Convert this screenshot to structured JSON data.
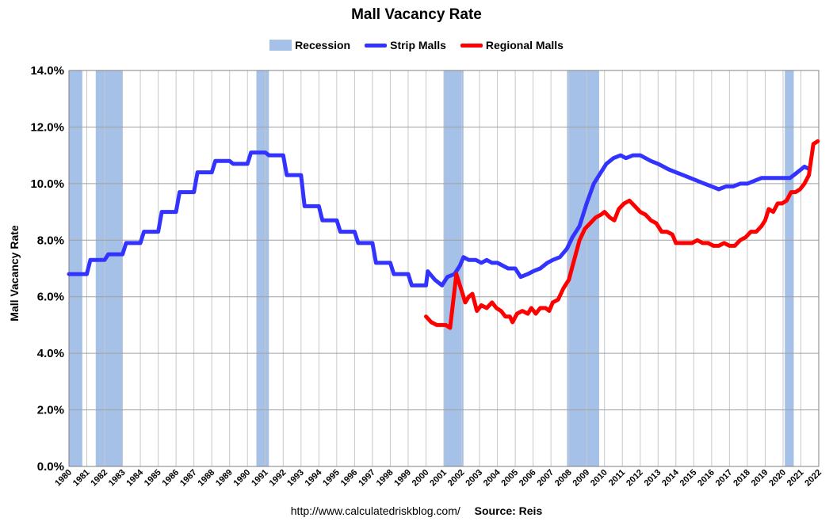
{
  "chart_data": {
    "type": "line",
    "title": "Mall Vacancy Rate",
    "ylabel": "Mall Vacancy Rate",
    "xlabel": "",
    "ylim": [
      0,
      14
    ],
    "xlim": [
      1980,
      2022
    ],
    "y_ticks": [
      "0.0%",
      "2.0%",
      "4.0%",
      "6.0%",
      "8.0%",
      "10.0%",
      "12.0%",
      "14.0%"
    ],
    "y_tick_values": [
      0,
      2,
      4,
      6,
      8,
      10,
      12,
      14
    ],
    "x_ticks": [
      "1980",
      "1981",
      "1982",
      "1983",
      "1984",
      "1985",
      "1986",
      "1987",
      "1988",
      "1989",
      "1990",
      "1991",
      "1992",
      "1993",
      "1994",
      "1995",
      "1996",
      "1997",
      "1998",
      "1999",
      "2000",
      "2001",
      "2002",
      "2003",
      "2004",
      "2005",
      "2006",
      "2007",
      "2008",
      "2009",
      "2010",
      "2011",
      "2012",
      "2013",
      "2014",
      "2015",
      "2016",
      "2017",
      "2018",
      "2019",
      "2020",
      "2021",
      "2022"
    ],
    "grid": true,
    "legend": [
      {
        "name": "Recession",
        "kind": "box",
        "color": "#a6c1e8"
      },
      {
        "name": "Strip Malls",
        "kind": "line",
        "color": "#3333ff"
      },
      {
        "name": "Regional Malls",
        "kind": "line",
        "color": "#ff0000"
      }
    ],
    "recessions": [
      [
        1980.0,
        1980.75
      ],
      [
        1981.5,
        1983.0
      ],
      [
        1990.5,
        1991.2
      ],
      [
        2001.0,
        2002.1
      ],
      [
        2007.9,
        2009.7
      ],
      [
        2020.1,
        2020.6
      ]
    ],
    "series": [
      {
        "name": "Strip Malls",
        "color": "#3333ff",
        "points": [
          [
            1980.0,
            6.8
          ],
          [
            1981.0,
            6.8
          ],
          [
            1981.2,
            7.3
          ],
          [
            1982.0,
            7.3
          ],
          [
            1982.2,
            7.5
          ],
          [
            1983.0,
            7.5
          ],
          [
            1983.2,
            7.9
          ],
          [
            1984.0,
            7.9
          ],
          [
            1984.2,
            8.3
          ],
          [
            1985.0,
            8.3
          ],
          [
            1985.2,
            9.0
          ],
          [
            1986.0,
            9.0
          ],
          [
            1986.2,
            9.7
          ],
          [
            1987.0,
            9.7
          ],
          [
            1987.2,
            10.4
          ],
          [
            1988.0,
            10.4
          ],
          [
            1988.2,
            10.8
          ],
          [
            1989.0,
            10.8
          ],
          [
            1989.2,
            10.7
          ],
          [
            1990.0,
            10.7
          ],
          [
            1990.2,
            11.1
          ],
          [
            1991.0,
            11.1
          ],
          [
            1991.2,
            11.0
          ],
          [
            1992.0,
            11.0
          ],
          [
            1992.2,
            10.3
          ],
          [
            1993.0,
            10.3
          ],
          [
            1993.2,
            9.2
          ],
          [
            1994.0,
            9.2
          ],
          [
            1994.2,
            8.7
          ],
          [
            1995.0,
            8.7
          ],
          [
            1995.2,
            8.3
          ],
          [
            1996.0,
            8.3
          ],
          [
            1996.2,
            7.9
          ],
          [
            1997.0,
            7.9
          ],
          [
            1997.2,
            7.2
          ],
          [
            1998.0,
            7.2
          ],
          [
            1998.2,
            6.8
          ],
          [
            1999.0,
            6.8
          ],
          [
            1999.2,
            6.4
          ],
          [
            2000.0,
            6.4
          ],
          [
            2000.1,
            6.9
          ],
          [
            2000.5,
            6.6
          ],
          [
            2000.9,
            6.4
          ],
          [
            2001.2,
            6.7
          ],
          [
            2001.6,
            6.8
          ],
          [
            2001.9,
            7.1
          ],
          [
            2002.1,
            7.4
          ],
          [
            2002.4,
            7.3
          ],
          [
            2002.8,
            7.3
          ],
          [
            2003.1,
            7.2
          ],
          [
            2003.4,
            7.3
          ],
          [
            2003.7,
            7.2
          ],
          [
            2004.0,
            7.2
          ],
          [
            2004.3,
            7.1
          ],
          [
            2004.6,
            7.0
          ],
          [
            2005.0,
            7.0
          ],
          [
            2005.3,
            6.7
          ],
          [
            2005.7,
            6.8
          ],
          [
            2006.0,
            6.9
          ],
          [
            2006.4,
            7.0
          ],
          [
            2006.8,
            7.2
          ],
          [
            2007.1,
            7.3
          ],
          [
            2007.5,
            7.4
          ],
          [
            2007.9,
            7.7
          ],
          [
            2008.2,
            8.1
          ],
          [
            2008.6,
            8.5
          ],
          [
            2009.0,
            9.3
          ],
          [
            2009.4,
            10.0
          ],
          [
            2009.8,
            10.4
          ],
          [
            2010.1,
            10.7
          ],
          [
            2010.5,
            10.9
          ],
          [
            2010.9,
            11.0
          ],
          [
            2011.2,
            10.9
          ],
          [
            2011.6,
            11.0
          ],
          [
            2012.0,
            11.0
          ],
          [
            2012.3,
            10.9
          ],
          [
            2012.6,
            10.8
          ],
          [
            2013.0,
            10.7
          ],
          [
            2013.3,
            10.6
          ],
          [
            2013.6,
            10.5
          ],
          [
            2014.0,
            10.4
          ],
          [
            2014.4,
            10.3
          ],
          [
            2014.8,
            10.2
          ],
          [
            2015.2,
            10.1
          ],
          [
            2015.6,
            10.0
          ],
          [
            2016.0,
            9.9
          ],
          [
            2016.4,
            9.8
          ],
          [
            2016.8,
            9.9
          ],
          [
            2017.2,
            9.9
          ],
          [
            2017.6,
            10.0
          ],
          [
            2018.0,
            10.0
          ],
          [
            2018.4,
            10.1
          ],
          [
            2018.8,
            10.2
          ],
          [
            2019.2,
            10.2
          ],
          [
            2019.6,
            10.2
          ],
          [
            2020.0,
            10.2
          ],
          [
            2020.4,
            10.2
          ],
          [
            2020.8,
            10.4
          ],
          [
            2021.2,
            10.6
          ],
          [
            2021.5,
            10.5
          ]
        ]
      },
      {
        "name": "Regional Malls",
        "color": "#ff0000",
        "points": [
          [
            2000.0,
            5.3
          ],
          [
            2000.3,
            5.1
          ],
          [
            2000.6,
            5.0
          ],
          [
            2000.9,
            5.0
          ],
          [
            2001.1,
            5.0
          ],
          [
            2001.35,
            4.9
          ],
          [
            2001.7,
            6.8
          ],
          [
            2001.9,
            6.4
          ],
          [
            2002.2,
            5.8
          ],
          [
            2002.4,
            6.0
          ],
          [
            2002.6,
            6.1
          ],
          [
            2002.85,
            5.5
          ],
          [
            2003.1,
            5.7
          ],
          [
            2003.4,
            5.6
          ],
          [
            2003.7,
            5.8
          ],
          [
            2003.95,
            5.6
          ],
          [
            2004.2,
            5.5
          ],
          [
            2004.45,
            5.3
          ],
          [
            2004.7,
            5.3
          ],
          [
            2004.85,
            5.1
          ],
          [
            2005.1,
            5.4
          ],
          [
            2005.4,
            5.5
          ],
          [
            2005.7,
            5.4
          ],
          [
            2005.9,
            5.6
          ],
          [
            2006.15,
            5.4
          ],
          [
            2006.4,
            5.6
          ],
          [
            2006.7,
            5.6
          ],
          [
            2006.9,
            5.5
          ],
          [
            2007.1,
            5.8
          ],
          [
            2007.4,
            5.9
          ],
          [
            2007.7,
            6.3
          ],
          [
            2008.0,
            6.6
          ],
          [
            2008.3,
            7.3
          ],
          [
            2008.6,
            8.0
          ],
          [
            2008.9,
            8.4
          ],
          [
            2009.2,
            8.6
          ],
          [
            2009.5,
            8.8
          ],
          [
            2009.8,
            8.9
          ],
          [
            2010.0,
            9.0
          ],
          [
            2010.3,
            8.8
          ],
          [
            2010.55,
            8.7
          ],
          [
            2010.8,
            9.1
          ],
          [
            2011.1,
            9.3
          ],
          [
            2011.4,
            9.4
          ],
          [
            2011.7,
            9.2
          ],
          [
            2012.0,
            9.0
          ],
          [
            2012.3,
            8.9
          ],
          [
            2012.6,
            8.7
          ],
          [
            2012.9,
            8.6
          ],
          [
            2013.2,
            8.3
          ],
          [
            2013.5,
            8.3
          ],
          [
            2013.8,
            8.2
          ],
          [
            2014.0,
            7.9
          ],
          [
            2014.3,
            7.9
          ],
          [
            2014.6,
            7.9
          ],
          [
            2014.9,
            7.9
          ],
          [
            2015.2,
            8.0
          ],
          [
            2015.5,
            7.9
          ],
          [
            2015.8,
            7.9
          ],
          [
            2016.1,
            7.8
          ],
          [
            2016.4,
            7.8
          ],
          [
            2016.7,
            7.9
          ],
          [
            2017.0,
            7.8
          ],
          [
            2017.3,
            7.8
          ],
          [
            2017.6,
            8.0
          ],
          [
            2017.9,
            8.1
          ],
          [
            2018.2,
            8.3
          ],
          [
            2018.5,
            8.3
          ],
          [
            2018.8,
            8.5
          ],
          [
            2019.0,
            8.7
          ],
          [
            2019.2,
            9.1
          ],
          [
            2019.45,
            9.0
          ],
          [
            2019.7,
            9.3
          ],
          [
            2019.95,
            9.3
          ],
          [
            2020.2,
            9.4
          ],
          [
            2020.45,
            9.7
          ],
          [
            2020.7,
            9.7
          ],
          [
            2020.95,
            9.8
          ],
          [
            2021.2,
            10.0
          ],
          [
            2021.45,
            10.3
          ],
          [
            2021.7,
            11.4
          ],
          [
            2021.95,
            11.5
          ]
        ]
      }
    ]
  },
  "footer": {
    "url": "http://www.calculatedriskblog.com/",
    "source": "Source: Reis"
  }
}
